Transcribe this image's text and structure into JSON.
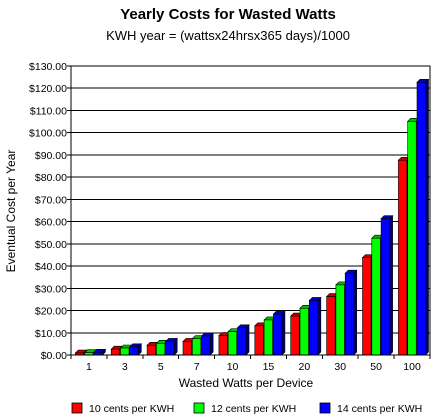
{
  "chart_data": {
    "type": "bar",
    "title": "Yearly Costs for Wasted Watts",
    "subtitle": "KWH year = (wattsx24hrsx365 days)/1000",
    "xlabel": "Wasted Watts per Device",
    "ylabel": "Eventual Cost per Year",
    "categories": [
      "1",
      "3",
      "5",
      "7",
      "10",
      "15",
      "20",
      "30",
      "50",
      "100"
    ],
    "ylim": [
      0,
      130
    ],
    "ytick_values": [
      0,
      10,
      20,
      30,
      40,
      50,
      60,
      70,
      80,
      90,
      100,
      110,
      120,
      130
    ],
    "ytick_labels": [
      "$0.00",
      "$10.00",
      "$20.00",
      "$30.00",
      "$40.00",
      "$50.00",
      "$60.00",
      "$70.00",
      "$80.00",
      "$90.00",
      "$100.00",
      "$110.00",
      "$120.00",
      "$130.00"
    ],
    "grid": true,
    "legend_position": "bottom",
    "series": [
      {
        "name": "10 cents per KWH",
        "color": "#ff0000",
        "values": [
          0.88,
          2.63,
          4.38,
          6.13,
          8.76,
          13.14,
          17.52,
          26.28,
          43.8,
          87.6
        ]
      },
      {
        "name": "12 cents per KWH",
        "color": "#00ff00",
        "values": [
          1.05,
          3.15,
          5.26,
          7.36,
          10.51,
          15.77,
          21.02,
          31.54,
          52.56,
          105.12
        ]
      },
      {
        "name": "14 cents per KWH",
        "color": "#0000ff",
        "values": [
          1.23,
          3.68,
          6.13,
          8.58,
          12.26,
          18.4,
          24.53,
          36.79,
          61.32,
          122.64
        ]
      }
    ]
  }
}
